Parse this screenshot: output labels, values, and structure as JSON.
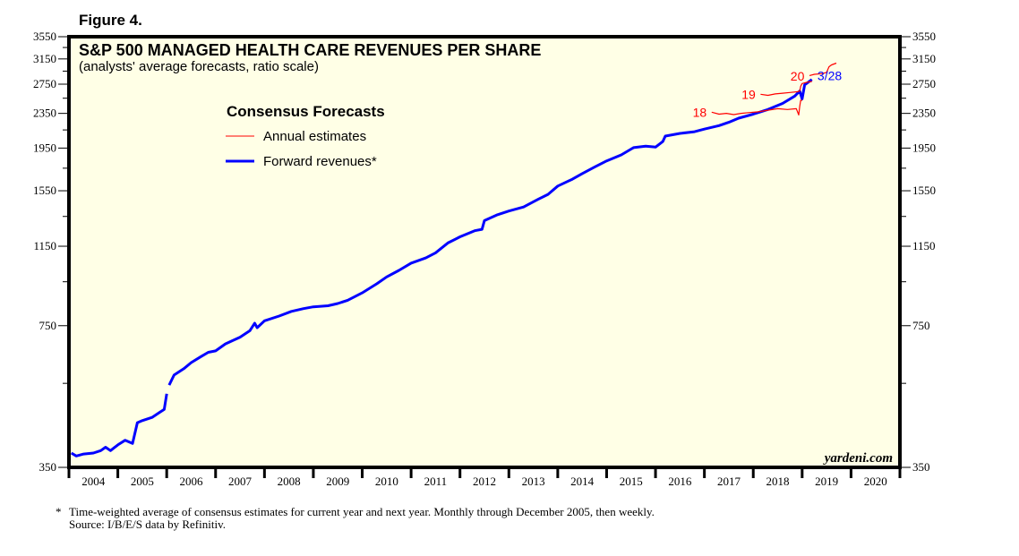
{
  "figure_label": "Figure 4.",
  "footnote": {
    "marker": "*",
    "line1": "Time-weighted average of consensus estimates for current year and next year. Monthly through December 2005, then weekly.",
    "line2": "Source: I/B/E/S data by Refinitiv."
  },
  "watermark": "yardeni.com",
  "colors": {
    "plot_background": "#ffffe6",
    "forward_revenues": "#0000ff",
    "annual_estimates": "#ff0000",
    "frame": "#000000"
  },
  "chart_data": {
    "type": "line",
    "title": "S&P 500 MANAGED HEALTH CARE REVENUES PER SHARE",
    "subtitle": "(analysts' average forecasts, ratio scale)",
    "xlabel": "",
    "ylabel": "",
    "y_scale": "log",
    "ylim": [
      350,
      3550
    ],
    "xlim": [
      2004.0,
      2021.0
    ],
    "grid": false,
    "y_ticks": [
      350,
      750,
      1150,
      1550,
      1950,
      2350,
      2750,
      3150,
      3550
    ],
    "y_tick_labels": [
      "350",
      "750",
      "1150",
      "1550",
      "1950",
      "2350",
      "2750",
      "3150",
      "3550"
    ],
    "y_minor_ticks": [
      550,
      950,
      1350,
      1750,
      2150,
      2550,
      2950,
      3350
    ],
    "x_tick_labels": [
      "2004",
      "2005",
      "2006",
      "2007",
      "2008",
      "2009",
      "2010",
      "2011",
      "2012",
      "2013",
      "2014",
      "2015",
      "2016",
      "2017",
      "2018",
      "2019",
      "2020"
    ],
    "legend": {
      "title": "Consensus Forecasts",
      "placement": "top-left",
      "entries": [
        {
          "label": "Annual estimates",
          "color": "#ff0000",
          "style": "thin"
        },
        {
          "label": "Forward revenues*",
          "color": "#0000ff",
          "style": "thick"
        }
      ]
    },
    "annotations": [
      {
        "text": "18",
        "series": "Annual estimate 2018",
        "x": 2017.12,
        "y": 2365
      },
      {
        "text": "19",
        "series": "Annual estimate 2019",
        "x": 2018.12,
        "y": 2605
      },
      {
        "text": "20",
        "series": "Annual estimate 2020",
        "x": 2019.12,
        "y": 2870
      },
      {
        "text": "3/28",
        "series": "Forward revenues",
        "x": 2019.24,
        "y": 2880
      }
    ],
    "series": [
      {
        "name": "Forward revenues",
        "color": "#0000ff",
        "segments": [
          {
            "x": [
              2004.05,
              2004.15,
              2004.3,
              2004.5,
              2004.65,
              2004.75,
              2004.85,
              2005.0,
              2005.15,
              2005.3,
              2005.4,
              2005.5,
              2005.7,
              2005.85,
              2005.95,
              2006.0
            ],
            "y": [
              378,
              372,
              376,
              378,
              383,
              390,
              383,
              395,
              405,
              398,
              445,
              450,
              458,
              470,
              478,
              520
            ]
          },
          {
            "x": [
              2006.05,
              2006.15,
              2006.35,
              2006.5,
              2006.7,
              2006.85,
              2007.0,
              2007.2,
              2007.5,
              2007.7,
              2007.8,
              2007.85,
              2008.0,
              2008.3,
              2008.55,
              2008.8,
              2009.0,
              2009.3,
              2009.5,
              2009.7,
              2010.0,
              2010.3,
              2010.5,
              2010.75,
              2011.0,
              2011.3,
              2011.5,
              2011.75,
              2012.0,
              2012.3,
              2012.45,
              2012.5,
              2012.75,
              2013.0,
              2013.3,
              2013.6,
              2013.8,
              2014.0,
              2014.3,
              2014.5,
              2014.75,
              2015.0,
              2015.3,
              2015.5,
              2015.55,
              2015.8,
              2016.0,
              2016.15,
              2016.2,
              2016.5,
              2016.8,
              2017.0,
              2017.3,
              2017.5,
              2017.7,
              2018.0,
              2018.3,
              2018.6,
              2018.85,
              2018.95,
              2019.0,
              2019.05,
              2019.2
            ],
            "y": [
              545,
              575,
              595,
              615,
              635,
              650,
              655,
              680,
              705,
              730,
              760,
              742,
              770,
              790,
              810,
              822,
              830,
              835,
              845,
              860,
              895,
              940,
              975,
              1010,
              1050,
              1080,
              1110,
              1170,
              1210,
              1250,
              1260,
              1320,
              1360,
              1390,
              1420,
              1480,
              1520,
              1590,
              1650,
              1700,
              1760,
              1820,
              1880,
              1940,
              1955,
              1970,
              1960,
              2020,
              2080,
              2110,
              2130,
              2160,
              2200,
              2240,
              2290,
              2340,
              2400,
              2480,
              2580,
              2650,
              2540,
              2740,
              2820
            ]
          }
        ]
      },
      {
        "name": "Annual estimate 2018",
        "color": "#ff0000",
        "x": [
          2017.15,
          2017.3,
          2017.45,
          2017.6,
          2017.75,
          2017.9,
          2018.1,
          2018.3,
          2018.5,
          2018.7,
          2018.88,
          2018.93,
          2018.95,
          2018.97,
          2019.0
        ],
        "y": [
          2365,
          2340,
          2350,
          2335,
          2350,
          2360,
          2370,
          2390,
          2410,
          2400,
          2410,
          2330,
          2440,
          2520,
          2520
        ]
      },
      {
        "name": "Annual estimate 2019",
        "color": "#ff0000",
        "x": [
          2018.15,
          2018.3,
          2018.45,
          2018.6,
          2018.75,
          2018.9,
          2018.95,
          2018.97,
          2019.0,
          2019.1,
          2019.2
        ],
        "y": [
          2605,
          2590,
          2610,
          2620,
          2630,
          2640,
          2650,
          2720,
          2760,
          2780,
          2790
        ]
      },
      {
        "name": "Annual estimate 2020",
        "color": "#ff0000",
        "x": [
          2019.15,
          2019.25,
          2019.4,
          2019.5,
          2019.55,
          2019.6,
          2019.7
        ],
        "y": [
          2880,
          2900,
          2910,
          2930,
          3020,
          3050,
          3080
        ]
      }
    ]
  }
}
